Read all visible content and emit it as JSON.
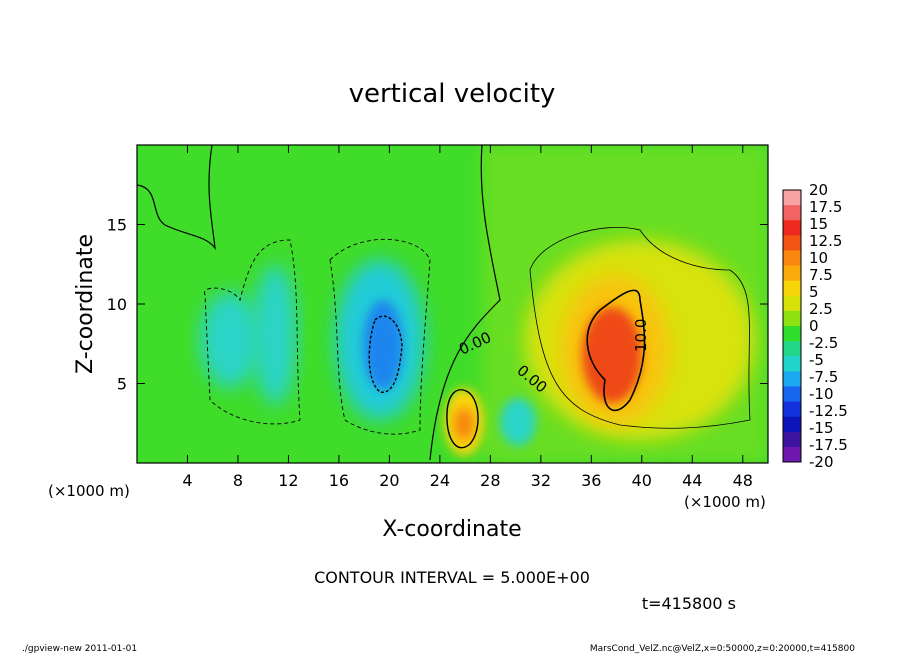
{
  "chart_data": {
    "type": "heatmap",
    "title": "vertical velocity",
    "xlabel": "X-coordinate",
    "ylabel": "Z-coordinate",
    "x_unit_left": "(×1000 m)",
    "x_unit_right": "(×1000 m)",
    "xlim": [
      0,
      50
    ],
    "ylim": [
      0,
      20
    ],
    "x_ticks": [
      4,
      8,
      12,
      16,
      20,
      24,
      28,
      32,
      36,
      40,
      44,
      48
    ],
    "y_ticks": [
      5,
      10,
      15
    ],
    "colorbar": {
      "labels": [
        "20",
        "17.5",
        "15",
        "12.5",
        "10",
        "7.5",
        "5",
        "2.5",
        "0",
        "-2.5",
        "-5",
        "-7.5",
        "-10",
        "-12.5",
        "-15",
        "-17.5",
        "-20"
      ],
      "colors": [
        "#f7a3a3",
        "#f26464",
        "#ee2a1e",
        "#f25512",
        "#f7870e",
        "#faaa0a",
        "#f8d40a",
        "#d8e20a",
        "#8ee212",
        "#2ede2a",
        "#22d68a",
        "#20d4cc",
        "#1aa8ee",
        "#1866ee",
        "#1232dc",
        "#0a14b8",
        "#3c14a0",
        "#6e18b0"
      ]
    },
    "contour_labels": [
      "0.00",
      "0.00",
      "10.0"
    ],
    "features": [
      {
        "kind": "updraft",
        "x": 38.5,
        "z": 7,
        "value": 14
      },
      {
        "kind": "updraft",
        "x": 26,
        "z": 2.5,
        "value": 8
      },
      {
        "kind": "downdraft",
        "x": 20,
        "z": 7,
        "value": -12
      },
      {
        "kind": "downdraft",
        "x": 7.5,
        "z": 8,
        "value": -7
      },
      {
        "kind": "downdraft",
        "x": 11.5,
        "z": 7,
        "value": -6
      },
      {
        "kind": "downdraft",
        "x": 30,
        "z": 2.5,
        "value": -6
      }
    ],
    "contour_interval_text": "CONTOUR INTERVAL = 5.000E+00",
    "time_text": "t=415800 s"
  },
  "footer": {
    "left": "./gpview-new   2011-01-01",
    "right": "MarsCond_VelZ.nc@VelZ,x=0:50000,z=0:20000,t=415800"
  }
}
